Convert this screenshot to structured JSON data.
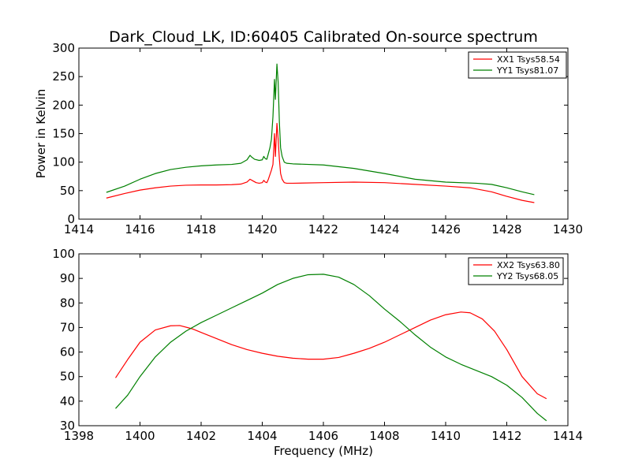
{
  "title": "Dark_Cloud_LK, ID:60405 Calibrated On-source spectrum",
  "colors": {
    "red": "#ff0000",
    "green": "#008000"
  },
  "chart_data": [
    {
      "type": "line",
      "xlabel": "",
      "ylabel": "Power in Kelvin",
      "xlim": [
        1414,
        1430
      ],
      "ylim": [
        0,
        300
      ],
      "xticks": [
        "1414",
        "1416",
        "1418",
        "1420",
        "1422",
        "1424",
        "1426",
        "1428",
        "1430"
      ],
      "yticks": [
        "0",
        "50",
        "100",
        "150",
        "200",
        "250",
        "300"
      ],
      "legend_position": "upper right",
      "series": [
        {
          "name": "XX1 Tsys58.54",
          "color": "#ff0000",
          "points": [
            [
              1414.9,
              37
            ],
            [
              1415.5,
              45
            ],
            [
              1416.0,
              51
            ],
            [
              1416.5,
              55
            ],
            [
              1417.0,
              58
            ],
            [
              1417.5,
              59.5
            ],
            [
              1418.0,
              60
            ],
            [
              1418.5,
              60
            ],
            [
              1419.0,
              60.5
            ],
            [
              1419.3,
              61.5
            ],
            [
              1419.5,
              65
            ],
            [
              1419.6,
              70
            ],
            [
              1419.7,
              67
            ],
            [
              1419.8,
              64
            ],
            [
              1419.9,
              63
            ],
            [
              1420.0,
              64
            ],
            [
              1420.05,
              68
            ],
            [
              1420.1,
              65
            ],
            [
              1420.15,
              64
            ],
            [
              1420.2,
              70
            ],
            [
              1420.25,
              78
            ],
            [
              1420.3,
              86
            ],
            [
              1420.35,
              96
            ],
            [
              1420.4,
              150
            ],
            [
              1420.43,
              110
            ],
            [
              1420.48,
              168
            ],
            [
              1420.52,
              140
            ],
            [
              1420.56,
              105
            ],
            [
              1420.6,
              80
            ],
            [
              1420.65,
              70
            ],
            [
              1420.72,
              64
            ],
            [
              1420.8,
              63
            ],
            [
              1421.0,
              63
            ],
            [
              1422.0,
              64
            ],
            [
              1423.0,
              65
            ],
            [
              1424.0,
              64
            ],
            [
              1425.0,
              61
            ],
            [
              1426.0,
              58
            ],
            [
              1426.8,
              55
            ],
            [
              1427.5,
              48
            ],
            [
              1428.0,
              40
            ],
            [
              1428.5,
              33
            ],
            [
              1428.9,
              29
            ]
          ]
        },
        {
          "name": "YY1 Tsys81.07",
          "color": "#008000",
          "points": [
            [
              1414.9,
              47
            ],
            [
              1415.5,
              58
            ],
            [
              1416.0,
              70
            ],
            [
              1416.5,
              80
            ],
            [
              1417.0,
              87
            ],
            [
              1417.5,
              91
            ],
            [
              1418.0,
              93.5
            ],
            [
              1418.5,
              95
            ],
            [
              1419.0,
              96
            ],
            [
              1419.3,
              98
            ],
            [
              1419.5,
              104
            ],
            [
              1419.6,
              112
            ],
            [
              1419.65,
              109
            ],
            [
              1419.75,
              105
            ],
            [
              1419.9,
              103
            ],
            [
              1420.0,
              104
            ],
            [
              1420.05,
              110
            ],
            [
              1420.1,
              106
            ],
            [
              1420.15,
              105
            ],
            [
              1420.2,
              115
            ],
            [
              1420.25,
              125
            ],
            [
              1420.3,
              140
            ],
            [
              1420.35,
              180
            ],
            [
              1420.4,
              245
            ],
            [
              1420.43,
              210
            ],
            [
              1420.48,
              272
            ],
            [
              1420.52,
              240
            ],
            [
              1420.56,
              170
            ],
            [
              1420.6,
              125
            ],
            [
              1420.65,
              110
            ],
            [
              1420.72,
              100
            ],
            [
              1420.8,
              98
            ],
            [
              1421.0,
              97
            ],
            [
              1422.0,
              95
            ],
            [
              1423.0,
              89
            ],
            [
              1424.0,
              80
            ],
            [
              1425.0,
              70
            ],
            [
              1426.0,
              65
            ],
            [
              1427.0,
              63
            ],
            [
              1427.5,
              61
            ],
            [
              1428.0,
              55
            ],
            [
              1428.5,
              48
            ],
            [
              1428.9,
              43
            ]
          ]
        }
      ]
    },
    {
      "type": "line",
      "xlabel": "Frequency (MHz)",
      "ylabel": "",
      "xlim": [
        1398,
        1414
      ],
      "ylim": [
        30,
        100
      ],
      "xticks": [
        "1398",
        "1400",
        "1402",
        "1404",
        "1406",
        "1408",
        "1410",
        "1412",
        "1414"
      ],
      "yticks": [
        "30",
        "40",
        "50",
        "60",
        "70",
        "80",
        "90",
        "100"
      ],
      "legend_position": "upper right",
      "series": [
        {
          "name": "XX2 Tsys63.80",
          "color": "#ff0000",
          "points": [
            [
              1399.2,
              49.5
            ],
            [
              1399.6,
              57
            ],
            [
              1400.0,
              64
            ],
            [
              1400.5,
              69
            ],
            [
              1401.0,
              70.7
            ],
            [
              1401.3,
              70.8
            ],
            [
              1401.7,
              69.5
            ],
            [
              1402.0,
              68
            ],
            [
              1402.5,
              65.5
            ],
            [
              1403.0,
              63
            ],
            [
              1403.5,
              61
            ],
            [
              1404.0,
              59.5
            ],
            [
              1404.5,
              58.3
            ],
            [
              1405.0,
              57.5
            ],
            [
              1405.5,
              57.1
            ],
            [
              1406.0,
              57.1
            ],
            [
              1406.5,
              57.8
            ],
            [
              1407.0,
              59.5
            ],
            [
              1407.5,
              61.5
            ],
            [
              1408.0,
              64
            ],
            [
              1408.5,
              67
            ],
            [
              1409.0,
              70
            ],
            [
              1409.5,
              73
            ],
            [
              1410.0,
              75.2
            ],
            [
              1410.5,
              76.3
            ],
            [
              1410.8,
              76
            ],
            [
              1411.2,
              73.5
            ],
            [
              1411.6,
              68.5
            ],
            [
              1412.0,
              61
            ],
            [
              1412.5,
              50
            ],
            [
              1413.0,
              43
            ],
            [
              1413.3,
              41
            ]
          ]
        },
        {
          "name": "YY2 Tsys68.05",
          "color": "#008000",
          "points": [
            [
              1399.2,
              37
            ],
            [
              1399.6,
              42.5
            ],
            [
              1400.0,
              50
            ],
            [
              1400.5,
              58
            ],
            [
              1401.0,
              64
            ],
            [
              1401.5,
              68.5
            ],
            [
              1402.0,
              72
            ],
            [
              1402.5,
              75
            ],
            [
              1403.0,
              78
            ],
            [
              1403.5,
              81
            ],
            [
              1404.0,
              84
            ],
            [
              1404.5,
              87.5
            ],
            [
              1405.0,
              90
            ],
            [
              1405.5,
              91.5
            ],
            [
              1406.0,
              91.7
            ],
            [
              1406.5,
              90.5
            ],
            [
              1407.0,
              87.5
            ],
            [
              1407.5,
              83
            ],
            [
              1408.0,
              77.5
            ],
            [
              1408.5,
              72.5
            ],
            [
              1409.0,
              67
            ],
            [
              1409.5,
              62
            ],
            [
              1410.0,
              58
            ],
            [
              1410.5,
              55
            ],
            [
              1411.0,
              52.5
            ],
            [
              1411.5,
              50
            ],
            [
              1412.0,
              46.5
            ],
            [
              1412.5,
              41.5
            ],
            [
              1413.0,
              35
            ],
            [
              1413.3,
              32
            ]
          ]
        }
      ]
    }
  ]
}
